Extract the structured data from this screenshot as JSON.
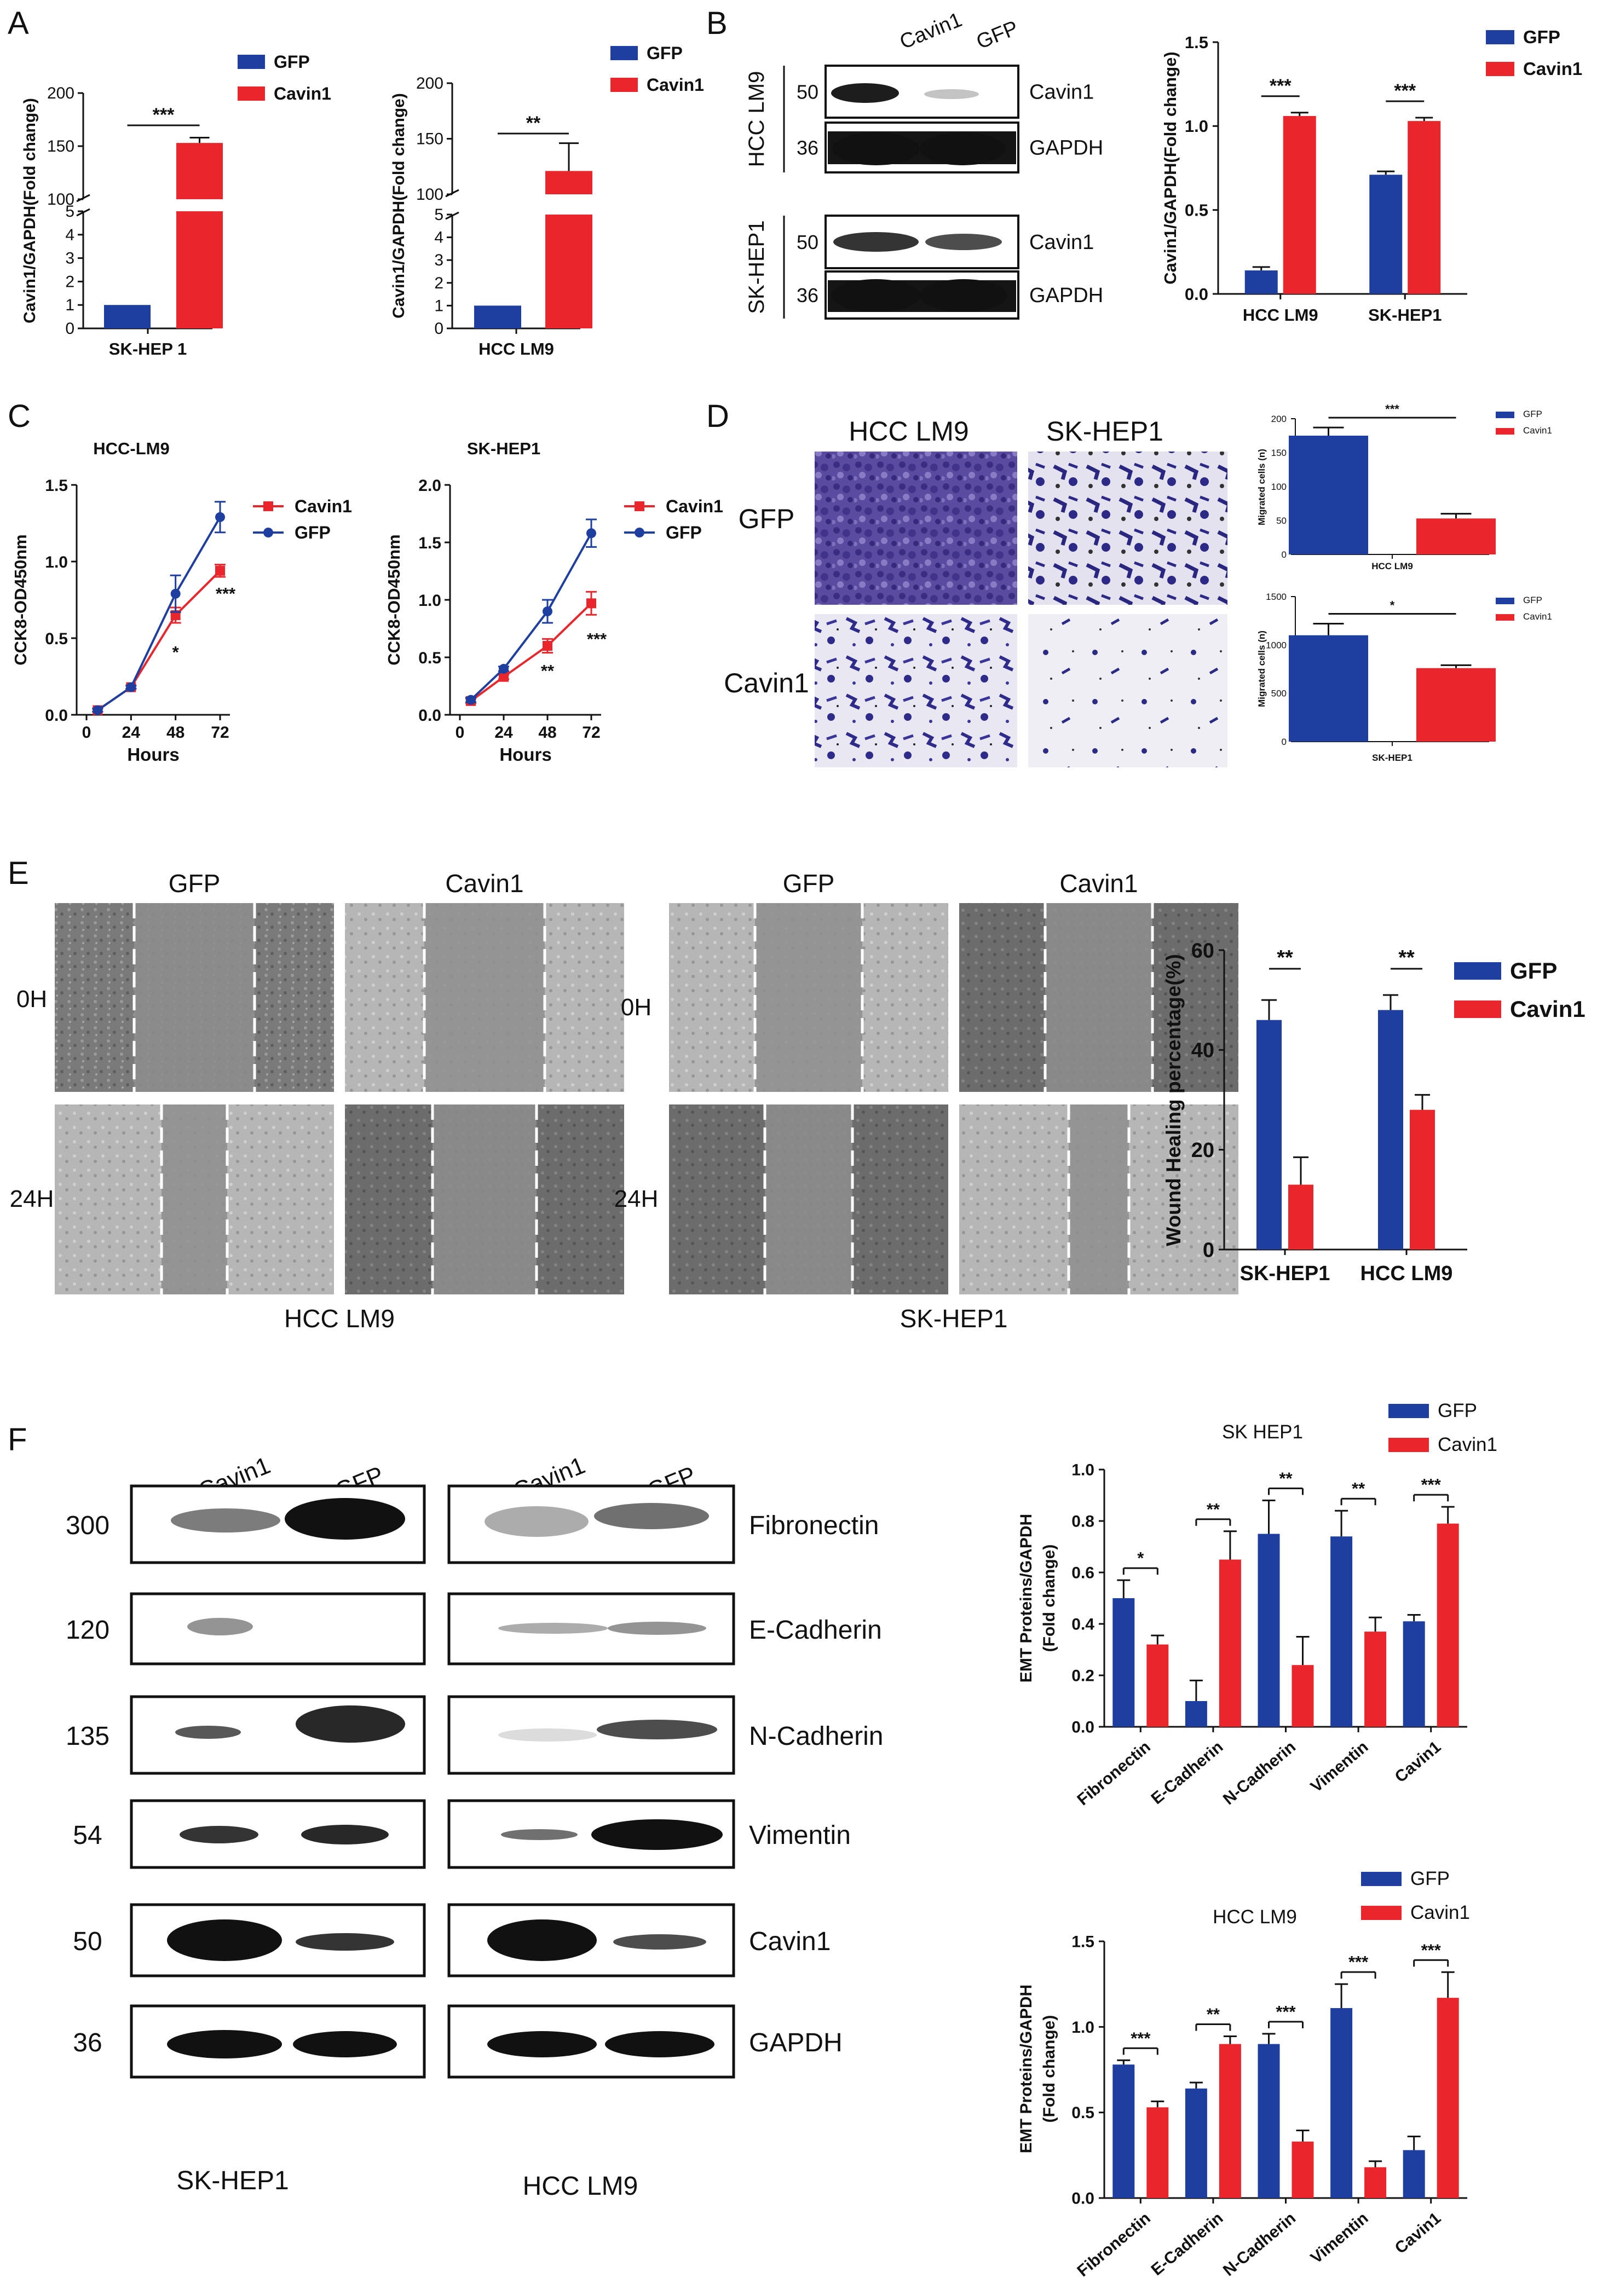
{
  "colors": {
    "gfp": "#1f3fa0",
    "cavin1": "#e8262b",
    "axis": "#111111"
  },
  "panels": {
    "A": "A",
    "B": "B",
    "C": "C",
    "D": "D",
    "E": "E",
    "F": "F"
  },
  "westernB": {
    "lanes": [
      "Cavin1",
      "GFP"
    ],
    "groups": [
      {
        "cell": "HCC LM9",
        "rows": [
          {
            "mw": "50",
            "protein": "Cavin1"
          },
          {
            "mw": "36",
            "protein": "GAPDH"
          }
        ]
      },
      {
        "cell": "SK-HEP1",
        "rows": [
          {
            "mw": "50",
            "protein": "Cavin1"
          },
          {
            "mw": "36",
            "protein": "GAPDH"
          }
        ]
      }
    ]
  },
  "migration": {
    "cols": [
      "HCC LM9",
      "SK-HEP1"
    ],
    "rows": [
      "GFP",
      "Cavin1"
    ]
  },
  "wound": {
    "lm9": {
      "cols": [
        "GFP",
        "Cavin1"
      ],
      "rows": [
        "0H",
        "24H"
      ],
      "caption": "HCC LM9"
    },
    "sk": {
      "cols": [
        "GFP",
        "Cavin1"
      ],
      "rows": [
        "0H",
        "24H"
      ],
      "caption": "SK-HEP1"
    }
  },
  "westernF": {
    "lanes": [
      "Cavin1",
      "GFP"
    ],
    "mw": [
      "300",
      "120",
      "135",
      "54",
      "50",
      "36"
    ],
    "proteins": [
      "Fibronectin",
      "E-Cadherin",
      "N-Cadherin",
      "Vimentin",
      "Cavin1",
      "GAPDH"
    ],
    "captions": [
      "SK-HEP1",
      "HCC LM9"
    ]
  },
  "chart_data": [
    {
      "id": "A1",
      "type": "bar",
      "categories": [
        "SK-HEP 1"
      ],
      "series": [
        {
          "name": "GFP",
          "values": [
            1.0
          ]
        },
        {
          "name": "Cavin1",
          "values": [
            153
          ],
          "err": [
            5
          ]
        }
      ],
      "ylabel": "Cavin1/GAPDH(Fold change)",
      "ylim": [
        0,
        200
      ],
      "broken_axis": {
        "lower": [
          0,
          5
        ],
        "upper": [
          100,
          200
        ]
      },
      "yticks_lower": [
        "0",
        "1",
        "2",
        "3",
        "4",
        "5"
      ],
      "yticks_upper": [
        "100",
        "150",
        "200"
      ],
      "sig": "***",
      "legend": "top-right"
    },
    {
      "id": "A2",
      "type": "bar",
      "categories": [
        "HCC LM9"
      ],
      "series": [
        {
          "name": "GFP",
          "values": [
            1.0
          ]
        },
        {
          "name": "Cavin1",
          "values": [
            121
          ],
          "err": [
            25
          ]
        }
      ],
      "ylabel": "Cavin1/GAPDH(Fold change)",
      "ylim": [
        0,
        200
      ],
      "broken_axis": {
        "lower": [
          0,
          5
        ],
        "upper": [
          100,
          200
        ]
      },
      "yticks_lower": [
        "0",
        "1",
        "2",
        "3",
        "4",
        "5"
      ],
      "yticks_upper": [
        "100",
        "150",
        "200"
      ],
      "sig": "**",
      "legend": "top-right"
    },
    {
      "id": "B",
      "type": "bar",
      "categories": [
        "HCC LM9",
        "SK-HEP1"
      ],
      "series": [
        {
          "name": "GFP",
          "values": [
            0.14,
            0.71
          ],
          "err": [
            0.02,
            0.02
          ]
        },
        {
          "name": "Cavin1",
          "values": [
            1.06,
            1.03
          ],
          "err": [
            0.02,
            0.02
          ]
        }
      ],
      "ylabel": "Cavin1/GAPDH(Fold change)",
      "ylim": [
        0,
        1.5
      ],
      "yticks": [
        "0.0",
        "0.5",
        "1.0",
        "1.5"
      ],
      "sig": [
        "***",
        "***"
      ],
      "legend": "top-right"
    },
    {
      "id": "C1",
      "type": "line",
      "title": "HCC-LM9",
      "x": [
        6,
        24,
        48,
        72
      ],
      "xticks": [
        "0",
        "24",
        "48",
        "72"
      ],
      "series": [
        {
          "name": "Cavin1",
          "values": [
            0.03,
            0.18,
            0.65,
            0.94
          ],
          "err": [
            0.01,
            0.01,
            0.05,
            0.04
          ]
        },
        {
          "name": "GFP",
          "values": [
            0.03,
            0.18,
            0.79,
            1.29
          ],
          "err": [
            0.01,
            0.01,
            0.12,
            0.1
          ]
        }
      ],
      "xlabel": "Hours",
      "ylabel": "CCK8-OD450nm",
      "ylim": [
        0,
        1.5
      ],
      "yticks": [
        "0.0",
        "0.5",
        "1.0",
        "1.5"
      ],
      "sig": [
        "*",
        "***"
      ],
      "legend": "top-right"
    },
    {
      "id": "C2",
      "type": "line",
      "title": "SK-HEP1",
      "x": [
        6,
        24,
        48,
        72
      ],
      "xticks": [
        "0",
        "24",
        "48",
        "72"
      ],
      "series": [
        {
          "name": "Cavin1",
          "values": [
            0.12,
            0.33,
            0.6,
            0.97
          ],
          "err": [
            0.02,
            0.02,
            0.06,
            0.1
          ]
        },
        {
          "name": "GFP",
          "values": [
            0.13,
            0.4,
            0.9,
            1.58
          ],
          "err": [
            0.02,
            0.02,
            0.1,
            0.12
          ]
        }
      ],
      "xlabel": "Hours",
      "ylabel": "CCK8-OD450nm",
      "ylim": [
        0,
        2.0
      ],
      "yticks": [
        "0.0",
        "0.5",
        "1.0",
        "1.5",
        "2.0"
      ],
      "sig": [
        "**",
        "***"
      ],
      "legend": "top-right"
    },
    {
      "id": "D1",
      "type": "bar",
      "categories": [
        "HCC LM9"
      ],
      "series": [
        {
          "name": "GFP",
          "values": [
            175
          ],
          "err": [
            12
          ]
        },
        {
          "name": "Cavin1",
          "values": [
            53
          ],
          "err": [
            7
          ]
        }
      ],
      "ylabel": "Migrated cells (n)",
      "xlabel": "HCC LM9",
      "ylim": [
        0,
        200
      ],
      "yticks": [
        "0",
        "50",
        "100",
        "150",
        "200"
      ],
      "sig": "***",
      "legend": "top-right"
    },
    {
      "id": "D2",
      "type": "bar",
      "categories": [
        "SK-HEP1"
      ],
      "series": [
        {
          "name": "GFP",
          "values": [
            1100
          ],
          "err": [
            120
          ]
        },
        {
          "name": "Cavin1",
          "values": [
            760
          ],
          "err": [
            30
          ]
        }
      ],
      "ylabel": "Migrated cells (n)",
      "xlabel": "SK-HEP1",
      "ylim": [
        0,
        1500
      ],
      "yticks": [
        "0",
        "500",
        "1000",
        "1500"
      ],
      "sig": "*",
      "legend": "top-right"
    },
    {
      "id": "E",
      "type": "bar",
      "categories": [
        "SK-HEP1",
        "HCC LM9"
      ],
      "series": [
        {
          "name": "GFP",
          "values": [
            46,
            48
          ],
          "err": [
            4,
            3
          ]
        },
        {
          "name": "Cavin1",
          "values": [
            13,
            28
          ],
          "err": [
            5.5,
            3
          ]
        }
      ],
      "ylabel": "Wound Healing percentage(%)",
      "ylim": [
        0,
        60
      ],
      "yticks": [
        "0",
        "20",
        "40",
        "60"
      ],
      "sig": [
        "**",
        "**"
      ],
      "legend": "top-right"
    },
    {
      "id": "F1",
      "type": "bar",
      "title": "SK HEP1",
      "categories": [
        "Fibronectin",
        "E-Cadherin",
        "N-Cadherin",
        "Vimentin",
        "Cavin1"
      ],
      "series": [
        {
          "name": "GFP",
          "values": [
            0.5,
            0.1,
            0.75,
            0.74,
            0.41
          ],
          "err": [
            0.07,
            0.08,
            0.13,
            0.1,
            0.025
          ]
        },
        {
          "name": "Cavin1",
          "values": [
            0.32,
            0.65,
            0.24,
            0.37,
            0.79
          ],
          "err": [
            0.035,
            0.11,
            0.11,
            0.055,
            0.065
          ]
        }
      ],
      "ylabel": "EMT Proteins/GAPDH (Fold change)",
      "ylim": [
        0,
        1.0
      ],
      "yticks": [
        "0.0",
        "0.2",
        "0.4",
        "0.6",
        "0.8",
        "1.0"
      ],
      "sig": [
        "*",
        "**",
        "**",
        "**",
        "***"
      ],
      "legend": "top-right"
    },
    {
      "id": "F2",
      "type": "bar",
      "title": "HCC LM9",
      "categories": [
        "Fibronectin",
        "E-Cadherin",
        "N-Cadherin",
        "Vimentin",
        "Cavin1"
      ],
      "series": [
        {
          "name": "GFP",
          "values": [
            0.78,
            0.64,
            0.9,
            1.11,
            0.28
          ],
          "err": [
            0.025,
            0.035,
            0.06,
            0.14,
            0.08
          ]
        },
        {
          "name": "Cavin1",
          "values": [
            0.53,
            0.9,
            0.33,
            0.18,
            1.17
          ],
          "err": [
            0.035,
            0.045,
            0.065,
            0.035,
            0.15
          ]
        }
      ],
      "ylabel": "EMT Proteins/GAPDH (Fold change)",
      "ylim": [
        0,
        1.5
      ],
      "yticks": [
        "0.0",
        "0.5",
        "1.0",
        "1.5"
      ],
      "sig": [
        "***",
        "**",
        "***",
        "***",
        "***"
      ],
      "legend": "top-right"
    }
  ]
}
